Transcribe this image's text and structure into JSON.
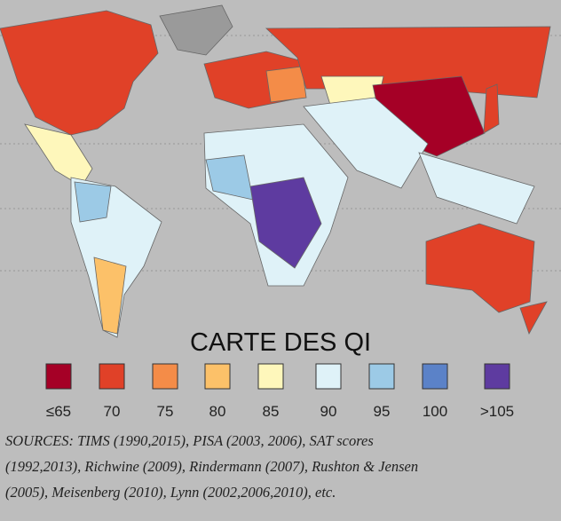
{
  "title": "CARTE DES QI",
  "legend": [
    {
      "label": "≤65",
      "color": "#a50026"
    },
    {
      "label": "70",
      "color": "#e04128"
    },
    {
      "label": "75",
      "color": "#f48c48"
    },
    {
      "label": "80",
      "color": "#fcc169"
    },
    {
      "label": "85",
      "color": "#fef7bb"
    },
    {
      "label": "90",
      "color": "#dff2f8"
    },
    {
      "label": "95",
      "color": "#9ccae6"
    },
    {
      "label": "100",
      "color": "#5b82c8"
    },
    {
      "label": ">105",
      "color": "#5e3ba0"
    }
  ],
  "sources": [
    "SOURCES: TIMS (1990,2015), PISA (2003, 2006), SAT scores",
    "(1992,2013), Richwine (2009), Rindermann (2007), Rushton & Jensen",
    "(2005), Meisenberg (2010), Lynn (2002,2006,2010), etc."
  ]
}
